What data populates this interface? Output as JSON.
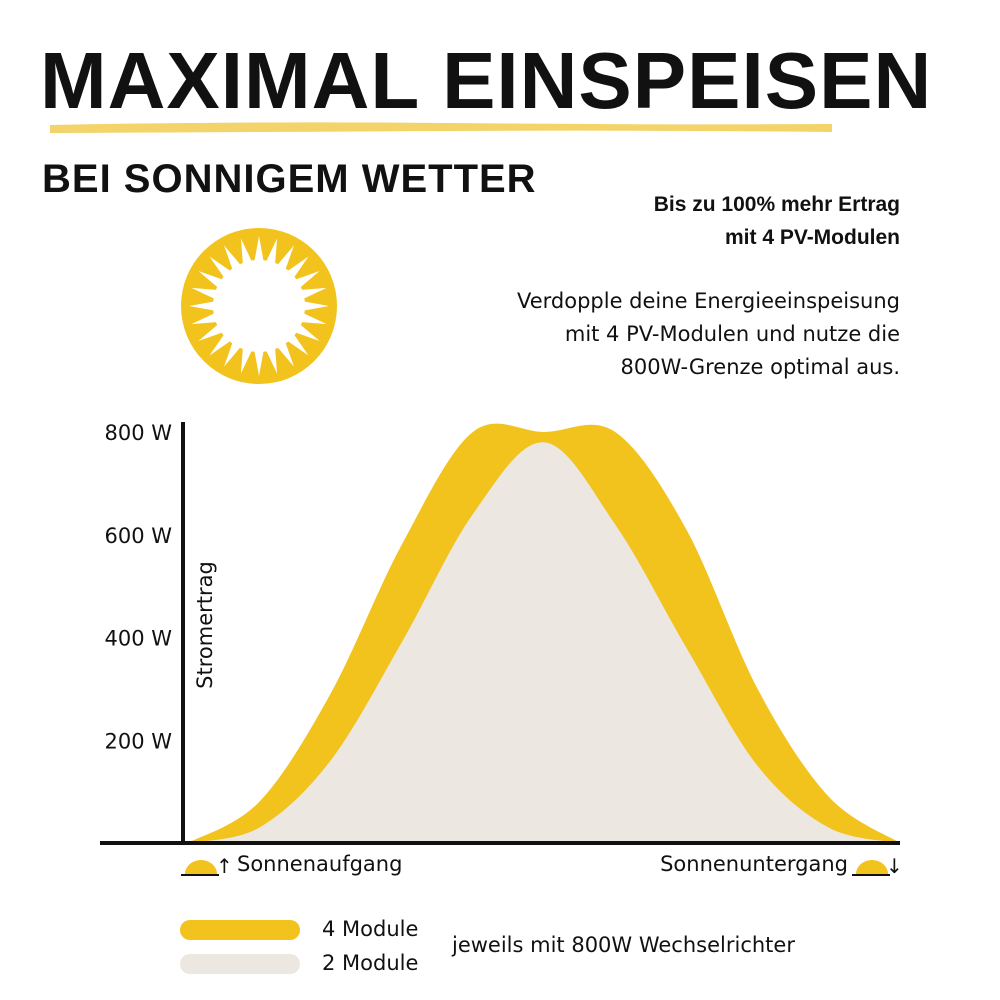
{
  "header": {
    "title": "MAXIMAL EINSPEISEN",
    "subtitle": "BEI SONNIGEM WETTER",
    "highlight_line1": "Bis zu 100% mehr Ertrag",
    "highlight_line2": "mit 4 PV-Modulen",
    "description_line1": "Verdopple deine Energieeinspeisung",
    "description_line2": "mit 4 PV-Modulen und nutze die",
    "description_line3": "800W-Grenze optimal aus."
  },
  "icons": {
    "sun": "sun-icon",
    "sunrise": "sunrise-icon",
    "sunset": "sunset-icon"
  },
  "colors": {
    "accent_yellow": "#F2C21D",
    "light_area": "#ECE8E1",
    "axis": "#111111"
  },
  "legend": {
    "item1": "4 Module",
    "item2": "2 Module",
    "note": "jeweils mit 800W Wechselrichter"
  },
  "chart_data": {
    "type": "area",
    "ylabel": "Stromertrag",
    "xlabel": "",
    "ylim": [
      0,
      800
    ],
    "yticks": [
      200,
      400,
      600,
      800
    ],
    "ytick_labels": [
      "200 W",
      "400 W",
      "600 W",
      "800 W"
    ],
    "x_start_label": "Sonnenaufgang",
    "x_end_label": "Sonnenuntergang",
    "x": [
      0,
      0.1,
      0.2,
      0.3,
      0.4,
      0.5,
      0.6,
      0.7,
      0.8,
      0.9,
      1.0
    ],
    "series": [
      {
        "name": "4 Module",
        "color": "#F2C21D",
        "values": [
          0,
          80,
          290,
          580,
          800,
          800,
          800,
          610,
          300,
          90,
          0
        ]
      },
      {
        "name": "2 Module",
        "color": "#ECE8E1",
        "values": [
          0,
          30,
          160,
          390,
          640,
          780,
          620,
          380,
          150,
          30,
          0
        ]
      }
    ],
    "grid": false,
    "legend_position": "bottom-left"
  }
}
